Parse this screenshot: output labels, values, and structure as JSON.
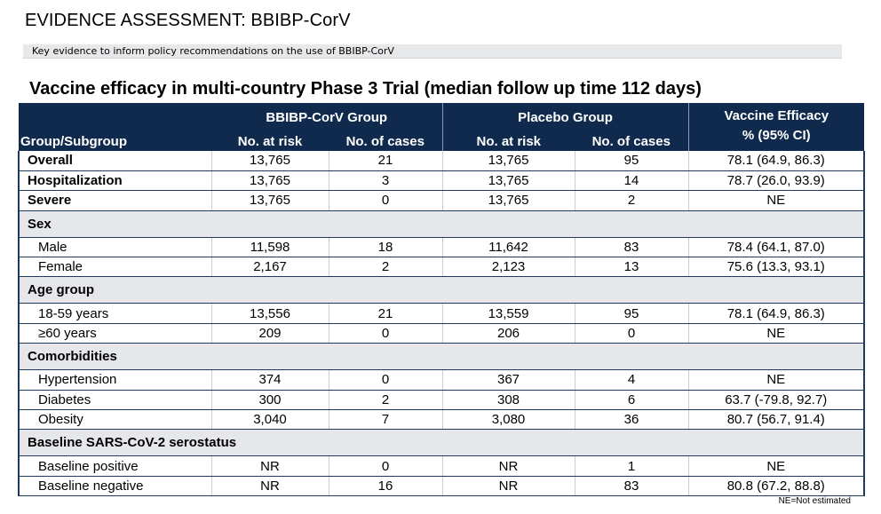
{
  "header": {
    "title": "EVIDENCE ASSESSMENT: BBIBP-CorV",
    "subtitle": "Key evidence to inform policy recommendations on the use of BBIBP-CorV"
  },
  "table_title": "Vaccine efficacy in multi-country Phase 3 Trial (median follow up time 112 days)",
  "table": {
    "group_header_1": "BBIBP-CorV Group",
    "group_header_2": "Placebo Group",
    "ve_header_line1": "Vaccine Efficacy",
    "ve_header_line2": "% (95% CI)",
    "col_group": "Group/Subgroup",
    "col_at_risk_1": "No. at risk",
    "col_cases_1": "No. of cases",
    "col_at_risk_2": "No. at risk",
    "col_cases_2": "No. of cases",
    "rows": [
      {
        "type": "bold",
        "label": "Overall",
        "a": "13,765",
        "b": "21",
        "c": "13,765",
        "d": "95",
        "e": "78.1 (64.9, 86.3)"
      },
      {
        "type": "bold",
        "label": "Hospitalization",
        "a": "13,765",
        "b": "3",
        "c": "13,765",
        "d": "14",
        "e": "78.7 (26.0, 93.9)"
      },
      {
        "type": "bold",
        "label": "Severe",
        "a": "13,765",
        "b": "0",
        "c": "13,765",
        "d": "2",
        "e": "NE"
      },
      {
        "type": "section",
        "label": "Sex"
      },
      {
        "type": "sub",
        "label": "Male",
        "a": "11,598",
        "b": "18",
        "c": "11,642",
        "d": "83",
        "e": "78.4 (64.1, 87.0)"
      },
      {
        "type": "sub",
        "label": "Female",
        "a": "2,167",
        "b": "2",
        "c": "2,123",
        "d": "13",
        "e": "75.6 (13.3, 93.1)"
      },
      {
        "type": "section",
        "label": "Age group"
      },
      {
        "type": "sub",
        "label": "18-59 years",
        "a": "13,556",
        "b": "21",
        "c": "13,559",
        "d": "95",
        "e": "78.1 (64.9, 86.3)"
      },
      {
        "type": "sub",
        "label": "≥60 years",
        "a": "209",
        "b": "0",
        "c": "206",
        "d": "0",
        "e": "NE"
      },
      {
        "type": "section",
        "label": "Comorbidities"
      },
      {
        "type": "sub",
        "label": "Hypertension",
        "a": "374",
        "b": "0",
        "c": "367",
        "d": "4",
        "e": "NE"
      },
      {
        "type": "sub",
        "label": "Diabetes",
        "a": "300",
        "b": "2",
        "c": "308",
        "d": "6",
        "e": "63.7 (-79.8, 92.7)"
      },
      {
        "type": "sub",
        "label": "Obesity",
        "a": "3,040",
        "b": "7",
        "c": "3,080",
        "d": "36",
        "e": "80.7 (56.7, 91.4)"
      },
      {
        "type": "section",
        "label": "Baseline SARS-CoV-2 serostatus"
      },
      {
        "type": "sub",
        "label": "Baseline positive",
        "a": "NR",
        "b": "0",
        "c": "NR",
        "d": "1",
        "e": "NE"
      },
      {
        "type": "sub",
        "label": "Baseline negative",
        "a": "NR",
        "b": "16",
        "c": "NR",
        "d": "83",
        "e": "80.8 (67.2, 88.8)"
      }
    ]
  },
  "footnote": "NE=Not estimated",
  "colors": {
    "header_bg": "#0f2a4d",
    "section_bg": "#e5e7ea",
    "subtitle_bg": "#e7e8ea"
  }
}
